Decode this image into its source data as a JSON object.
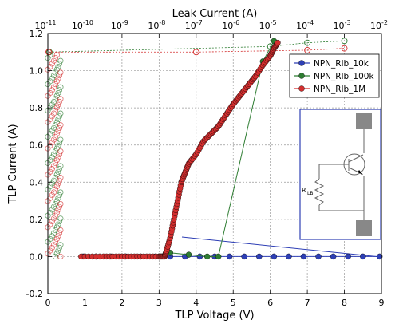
{
  "chart_data": {
    "type": "scatter",
    "xlabel": "TLP Voltage (V)",
    "ylabel": "TLP Current (A)",
    "x2label": "Leak Current (A)",
    "xlim": [
      0,
      9
    ],
    "ylim": [
      -0.2,
      1.2
    ],
    "x2lim": [
      1e-11,
      0.01
    ],
    "x2scale": "log",
    "xticks": [
      "0",
      "1",
      "2",
      "3",
      "4",
      "5",
      "6",
      "7",
      "8",
      "9"
    ],
    "yticks": [
      "-0.2",
      "0.0",
      "0.2",
      "0.4",
      "0.6",
      "0.8",
      "1.0",
      "1.2"
    ],
    "x2ticks": [
      {
        "base": "10",
        "exp": "-11"
      },
      {
        "base": "10",
        "exp": "-10"
      },
      {
        "base": "10",
        "exp": "-9"
      },
      {
        "base": "10",
        "exp": "-8"
      },
      {
        "base": "10",
        "exp": "-7"
      },
      {
        "base": "10",
        "exp": "-6"
      },
      {
        "base": "10",
        "exp": "-5"
      },
      {
        "base": "10",
        "exp": "-4"
      },
      {
        "base": "10",
        "exp": "-3"
      },
      {
        "base": "10",
        "exp": "-2"
      }
    ],
    "grid": true,
    "legend_position": "top-right",
    "series": [
      {
        "name": "NPN_Rlb_10k",
        "color": "#2e3fb5",
        "iv": [
          [
            0.95,
            0
          ],
          [
            1.3,
            0
          ],
          [
            1.7,
            0
          ],
          [
            2.1,
            0
          ],
          [
            2.5,
            0
          ],
          [
            2.9,
            0
          ],
          [
            3.3,
            0
          ],
          [
            3.7,
            0
          ],
          [
            4.1,
            0
          ],
          [
            4.5,
            0
          ],
          [
            4.9,
            0
          ],
          [
            5.3,
            0
          ],
          [
            5.7,
            0
          ],
          [
            6.1,
            0
          ],
          [
            6.5,
            0
          ],
          [
            6.9,
            0
          ],
          [
            7.3,
            0
          ],
          [
            7.7,
            0
          ],
          [
            8.1,
            0
          ],
          [
            8.5,
            0
          ],
          [
            8.95,
            0
          ]
        ],
        "leak": [
          [
            1.2e-11,
            1.1
          ],
          [
            1e-05,
            1.13
          ],
          [
            0.0001,
            1.15
          ]
        ]
      },
      {
        "name": "NPN_Rlb_100k",
        "color": "#2e7d32",
        "iv": [
          [
            1.0,
            0
          ],
          [
            2.0,
            0
          ],
          [
            3.0,
            0
          ],
          [
            3.3,
            0.02
          ],
          [
            3.8,
            0.01
          ],
          [
            4.3,
            0
          ],
          [
            4.6,
            0
          ],
          [
            5.8,
            1.05
          ],
          [
            6.1,
            1.16
          ]
        ],
        "leak": [
          [
            1.1e-11,
            1.1
          ],
          [
            1e-05,
            1.13
          ],
          [
            0.0001,
            1.15
          ],
          [
            0.001,
            1.16
          ]
        ]
      },
      {
        "name": "NPN_Rlb_1M",
        "color": "#d32f2f",
        "iv": [
          [
            0.9,
            0
          ],
          [
            1.5,
            0
          ],
          [
            2.0,
            0
          ],
          [
            2.5,
            0
          ],
          [
            3.0,
            0
          ],
          [
            3.15,
            0.0
          ],
          [
            3.2,
            0.03
          ],
          [
            3.3,
            0.1
          ],
          [
            3.4,
            0.2
          ],
          [
            3.5,
            0.3
          ],
          [
            3.6,
            0.4
          ],
          [
            3.7,
            0.45
          ],
          [
            3.8,
            0.5
          ],
          [
            4.0,
            0.55
          ],
          [
            4.2,
            0.62
          ],
          [
            4.4,
            0.66
          ],
          [
            4.6,
            0.7
          ],
          [
            4.8,
            0.76
          ],
          [
            5.0,
            0.82
          ],
          [
            5.2,
            0.87
          ],
          [
            5.4,
            0.92
          ],
          [
            5.6,
            0.97
          ],
          [
            5.8,
            1.03
          ],
          [
            6.0,
            1.08
          ],
          [
            6.1,
            1.12
          ],
          [
            6.2,
            1.15
          ]
        ],
        "leak": [
          [
            1.05e-11,
            1.1
          ],
          [
            1e-07,
            1.1
          ],
          [
            0.0001,
            1.11
          ],
          [
            0.001,
            1.12
          ]
        ]
      }
    ],
    "inset": {
      "resistor_label": "R",
      "resistor_subscript": "LB"
    }
  }
}
